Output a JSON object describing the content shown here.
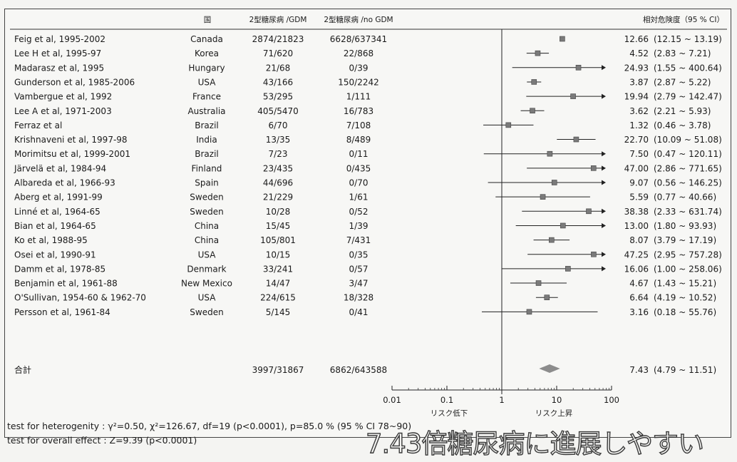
{
  "columns": {
    "country": "国",
    "gdm": "2型糖尿病 /GDM",
    "nogdm": "2型糖尿病 /no GDM",
    "rr": "相対危険度（95 % CI）"
  },
  "total": {
    "label": "合計",
    "gdm": "3997/31867",
    "nogdm": "6862/643588",
    "rr": "7.43",
    "ci": "(4.79 ~ 11.51)"
  },
  "axis": {
    "ticks": [
      "0.01",
      "0.1",
      "1",
      "10",
      "100"
    ],
    "label_low": "リスク低下",
    "label_high": "リスク上昇"
  },
  "footer": {
    "heterogeneity": "test for heterogenity : γ²=0.50, χ²=126.67, df=19 (p<0.0001), p=85.0 % (95 % CI 78~90)",
    "overall": "test for overall effect : Z=9.39 (p<0.0001)",
    "note": "7.43倍糖尿病に進展しやすい"
  },
  "colors": {
    "marker": "#7a7a7a",
    "diamond": "#8c8c8c",
    "line": "#222222"
  },
  "chart_data": {
    "type": "forest",
    "xscale": "log",
    "xlim": [
      0.01,
      100
    ],
    "reference_line": 1,
    "studies": [
      {
        "name": "Feig et al, 1995-2002",
        "country": "Canada",
        "gdm": "2874/21823",
        "nogdm": "6628/637341",
        "rr": "12.66",
        "ci": "(12.15 ~ 13.19)",
        "est": 12.66,
        "lo": 12.15,
        "hi": 13.19
      },
      {
        "name": "Lee H et al, 1995-97",
        "country": "Korea",
        "gdm": "71/620",
        "nogdm": "22/868",
        "rr": "4.52",
        "ci": "(2.83 ~ 7.21)",
        "est": 4.52,
        "lo": 2.83,
        "hi": 7.21
      },
      {
        "name": "Madarasz et al, 1995",
        "country": "Hungary",
        "gdm": "21/68",
        "nogdm": "0/39",
        "rr": "24.93",
        "ci": "(1.55 ~ 400.64)",
        "est": 24.93,
        "lo": 1.55,
        "hi": 400.64
      },
      {
        "name": "Gunderson et al, 1985-2006",
        "country": "USA",
        "gdm": "43/166",
        "nogdm": "150/2242",
        "rr": "3.87",
        "ci": "(2.87 ~ 5.22)",
        "est": 3.87,
        "lo": 2.87,
        "hi": 5.22
      },
      {
        "name": "Vambergue et al, 1992",
        "country": "France",
        "gdm": "53/295",
        "nogdm": "1/111",
        "rr": "19.94",
        "ci": "(2.79 ~ 142.47)",
        "est": 19.94,
        "lo": 2.79,
        "hi": 142.47
      },
      {
        "name": "Lee A et al, 1971-2003",
        "country": "Australia",
        "gdm": "405/5470",
        "nogdm": "16/783",
        "rr": "3.62",
        "ci": "(2.21 ~ 5.93)",
        "est": 3.62,
        "lo": 2.21,
        "hi": 5.93
      },
      {
        "name": "Ferraz et al",
        "country": "Brazil",
        "gdm": "6/70",
        "nogdm": "7/108",
        "rr": "1.32",
        "ci": "(0.46 ~ 3.78)",
        "est": 1.32,
        "lo": 0.46,
        "hi": 3.78
      },
      {
        "name": "Krishnaveni et al, 1997-98",
        "country": "India",
        "gdm": "13/35",
        "nogdm": "8/489",
        "rr": "22.70",
        "ci": "(10.09 ~ 51.08)",
        "est": 22.7,
        "lo": 10.09,
        "hi": 51.08
      },
      {
        "name": "Morimitsu et al, 1999-2001",
        "country": "Brazil",
        "gdm": "7/23",
        "nogdm": "0/11",
        "rr": "7.50",
        "ci": "(0.47 ~ 120.11)",
        "est": 7.5,
        "lo": 0.47,
        "hi": 120.11
      },
      {
        "name": "Järvelä et al, 1984-94",
        "country": "Finland",
        "gdm": "23/435",
        "nogdm": "0/435",
        "rr": "47.00",
        "ci": "(2.86 ~ 771.65)",
        "est": 47.0,
        "lo": 2.86,
        "hi": 771.65
      },
      {
        "name": "Albareda et al, 1966-93",
        "country": "Spain",
        "gdm": "44/696",
        "nogdm": "0/70",
        "rr": "9.07",
        "ci": "(0.56 ~ 146.25)",
        "est": 9.07,
        "lo": 0.56,
        "hi": 146.25
      },
      {
        "name": "Aberg et al, 1991-99",
        "country": "Sweden",
        "gdm": "21/229",
        "nogdm": "1/61",
        "rr": "5.59",
        "ci": "(0.77 ~ 40.66)",
        "est": 5.59,
        "lo": 0.77,
        "hi": 40.66
      },
      {
        "name": "Linné et al, 1964-65",
        "country": "Sweden",
        "gdm": "10/28",
        "nogdm": "0/52",
        "rr": "38.38",
        "ci": "(2.33 ~ 631.74)",
        "est": 38.38,
        "lo": 2.33,
        "hi": 631.74
      },
      {
        "name": "Bian et al, 1964-65",
        "country": "China",
        "gdm": "15/45",
        "nogdm": "1/39",
        "rr": "13.00",
        "ci": "(1.80 ~ 93.93)",
        "est": 13.0,
        "lo": 1.8,
        "hi": 93.93
      },
      {
        "name": "Ko et al, 1988-95",
        "country": "China",
        "gdm": "105/801",
        "nogdm": "7/431",
        "rr": "8.07",
        "ci": "(3.79 ~ 17.19)",
        "est": 8.07,
        "lo": 3.79,
        "hi": 17.19
      },
      {
        "name": "Osei et al, 1990-91",
        "country": "USA",
        "gdm": "10/15",
        "nogdm": "0/35",
        "rr": "47.25",
        "ci": "(2.95 ~ 757.28)",
        "est": 47.25,
        "lo": 2.95,
        "hi": 757.28
      },
      {
        "name": "Damm et al, 1978-85",
        "country": "Denmark",
        "gdm": "33/241",
        "nogdm": "0/57",
        "rr": "16.06",
        "ci": "(1.00 ~ 258.06)",
        "est": 16.06,
        "lo": 1.0,
        "hi": 258.06
      },
      {
        "name": "Benjamin et al, 1961-88",
        "country": "New Mexico",
        "gdm": "14/47",
        "nogdm": "3/47",
        "rr": "4.67",
        "ci": "(1.43 ~ 15.21)",
        "est": 4.67,
        "lo": 1.43,
        "hi": 15.21
      },
      {
        "name": "O'Sullivan, 1954-60 & 1962-70",
        "country": "USA",
        "gdm": "224/615",
        "nogdm": "18/328",
        "rr": "6.64",
        "ci": "(4.19 ~ 10.52)",
        "est": 6.64,
        "lo": 4.19,
        "hi": 10.52
      },
      {
        "name": "Persson et al, 1961-84",
        "country": "Sweden",
        "gdm": "5/145",
        "nogdm": "0/41",
        "rr": "3.16",
        "ci": "(0.18 ~ 55.76)",
        "est": 3.16,
        "lo": 0.18,
        "hi": 55.76
      }
    ],
    "pooled": {
      "est": 7.43,
      "lo": 4.79,
      "hi": 11.51
    }
  }
}
